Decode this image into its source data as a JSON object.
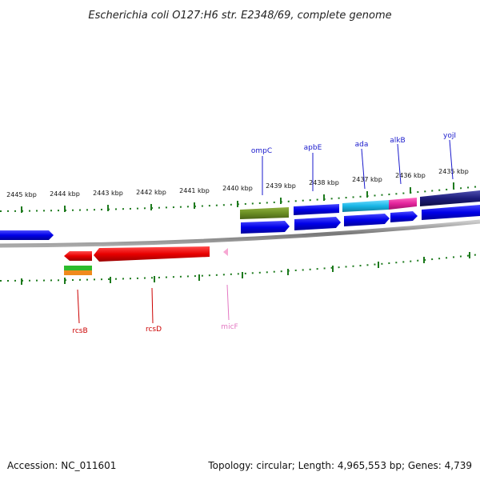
{
  "title": "Escherichia coli O127:H6 str. E2348/69, complete genome",
  "footer": {
    "accession": "Accession: NC_011601",
    "summary": "Topology: circular; Length: 4,965,553 bp; Genes: 4,739"
  },
  "scale_labels": [
    "2445 kbp",
    "2444 kbp",
    "2443 kbp",
    "2442 kbp",
    "2441 kbp",
    "2440 kbp",
    "2439 kbp",
    "2438 kbp",
    "2437 kbp",
    "2436 kbp",
    "2435 kbp"
  ],
  "genes_top": [
    {
      "name": "ompC",
      "color": "#1a1acc"
    },
    {
      "name": "apbE",
      "color": "#1a1acc"
    },
    {
      "name": "ada",
      "color": "#1a1acc"
    },
    {
      "name": "alkB",
      "color": "#1a1acc"
    },
    {
      "name": "yojI",
      "color": "#1a1acc"
    }
  ],
  "genes_bottom": [
    {
      "name": "rcsB",
      "color": "#cc0000"
    },
    {
      "name": "rcsD",
      "color": "#cc0000"
    },
    {
      "name": "micF",
      "color": "#e377c2"
    }
  ],
  "colors": {
    "cds_blue": "#0000ee",
    "cds_red": "#ee0000",
    "olive": "#6b8e23",
    "cyan": "#19b6e6",
    "magenta": "#e3249b",
    "navy": "#1c1c7a",
    "tick_green": "#1d7a1d",
    "backbone_gray": "#777777"
  }
}
